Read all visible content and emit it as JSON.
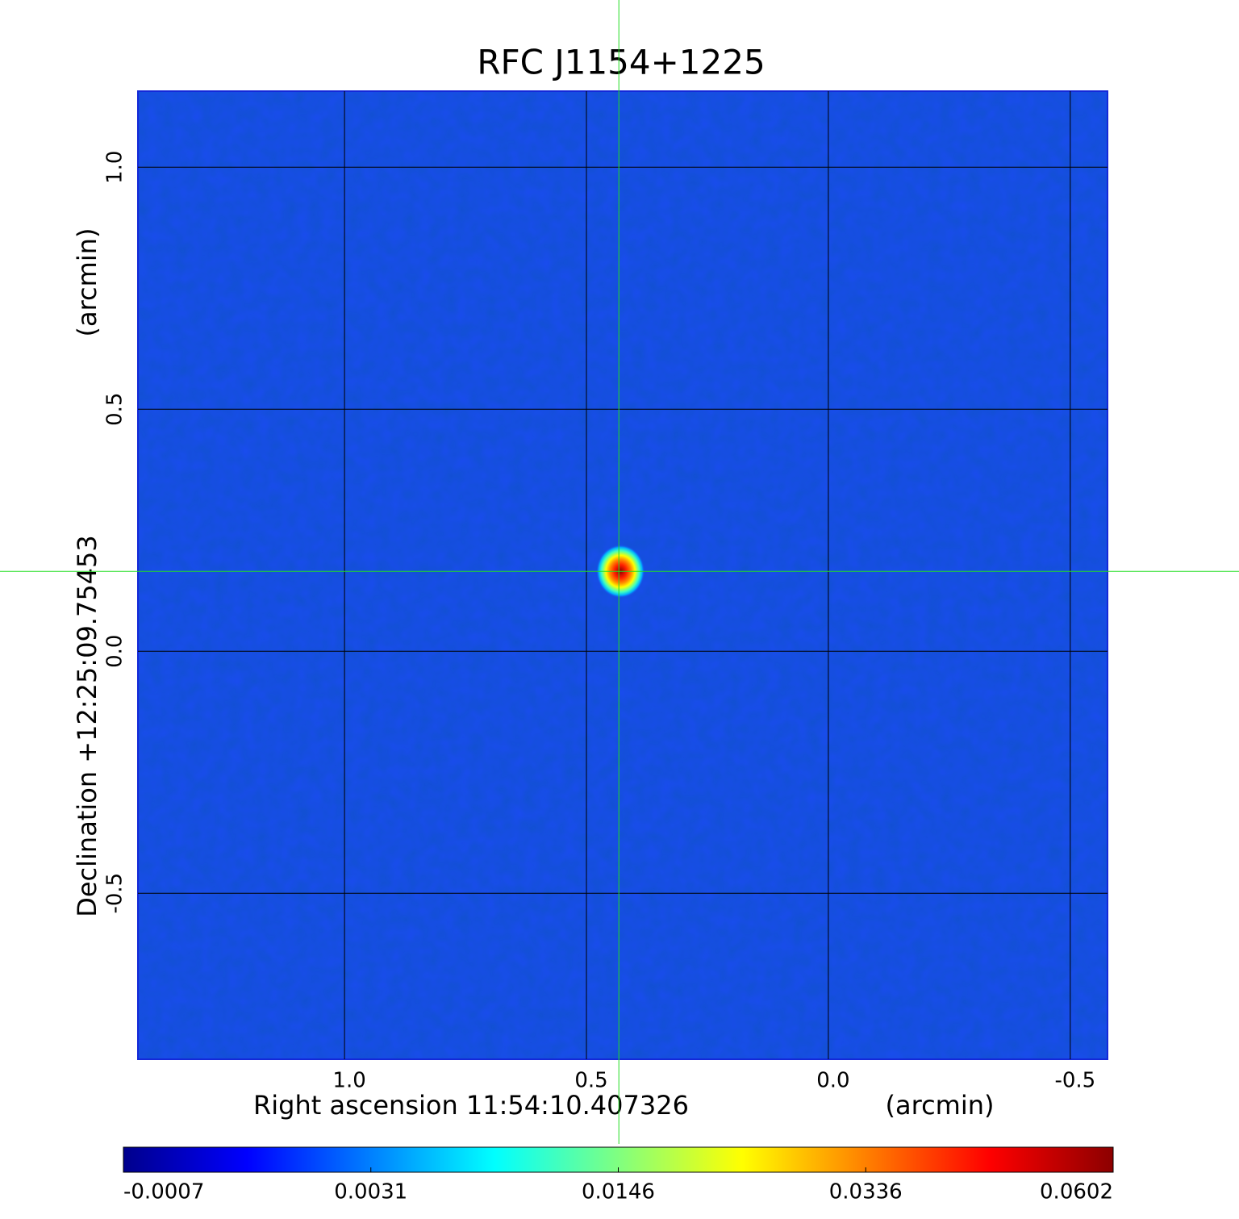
{
  "chart_data": {
    "type": "image",
    "title": "RFC J1154+1225",
    "title_color": "#1212c8",
    "x_label": "Right ascension  11:54:10.407326",
    "x_unit": "(arcmin)",
    "y_label": "Declination  +12:25:09.75453",
    "y_unit": "(arcmin)",
    "xlim": [
      1.427,
      -0.577
    ],
    "ylim": [
      -0.843,
      1.157
    ],
    "xticks": [
      {
        "value": 1,
        "label": "1.0"
      },
      {
        "value": 0.5,
        "label": "0.5"
      },
      {
        "value": 0,
        "label": "0.0"
      },
      {
        "value": -0.5,
        "label": "-0.5"
      }
    ],
    "yticks": [
      {
        "value": 1,
        "label": "1.0"
      },
      {
        "value": 0.5,
        "label": "0.5"
      },
      {
        "value": 0,
        "label": "0.0"
      },
      {
        "value": -0.5,
        "label": "-0.5"
      }
    ],
    "grid": true,
    "background_color": "#1a4cf0",
    "crosshair": {
      "x": 0.433,
      "y": 0.165,
      "color": "#22dd22"
    },
    "colorbar": {
      "ticks": [
        -0.0007,
        0.0031,
        0.0146,
        0.0336,
        0.0602
      ],
      "colors": [
        "#00008c",
        "#0000ff",
        "#0080ff",
        "#00ffff",
        "#80ff80",
        "#ffff00",
        "#ff8000",
        "#ff0000",
        "#8c0000"
      ]
    }
  }
}
